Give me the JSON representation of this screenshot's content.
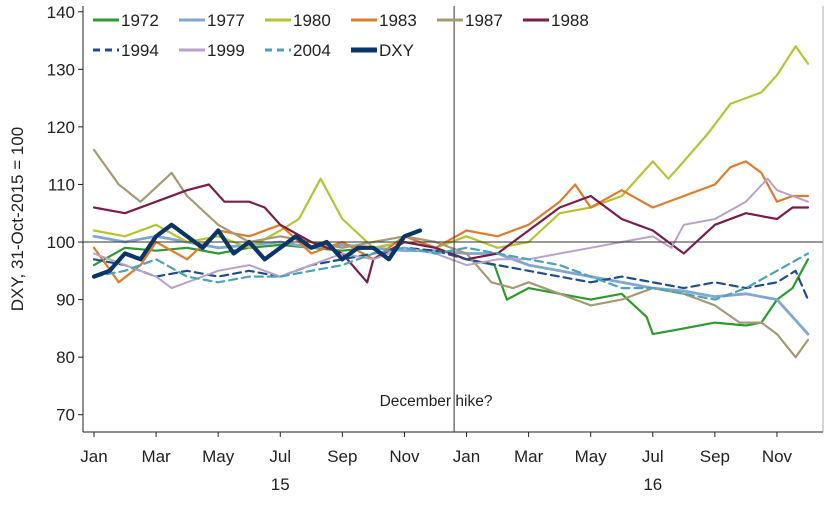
{
  "chart_data": {
    "type": "line",
    "title": "",
    "ylabel": "DXY, 31-Oct-2015 = 100",
    "xlabel": "",
    "ylim": [
      67,
      141
    ],
    "yticks": [
      70,
      80,
      90,
      100,
      110,
      120,
      130,
      140
    ],
    "xlim": [
      0,
      23
    ],
    "xticks": [
      {
        "x": 0,
        "label": "Jan"
      },
      {
        "x": 2,
        "label": "Mar"
      },
      {
        "x": 4,
        "label": "May"
      },
      {
        "x": 6,
        "label": "Jul"
      },
      {
        "x": 8,
        "label": "Sep"
      },
      {
        "x": 10,
        "label": "Nov"
      },
      {
        "x": 12,
        "label": "Jan"
      },
      {
        "x": 14,
        "label": "Mar"
      },
      {
        "x": 16,
        "label": "May"
      },
      {
        "x": 18,
        "label": "Jul"
      },
      {
        "x": 20,
        "label": "Sep"
      },
      {
        "x": 22,
        "label": "Nov"
      }
    ],
    "year_labels": [
      {
        "x": 6,
        "label": "15"
      },
      {
        "x": 18,
        "label": "16"
      }
    ],
    "reference_line": {
      "y": 100
    },
    "vline": {
      "x": 11.6
    },
    "annotation": {
      "text": "December hike?",
      "x": 9.2,
      "y": 71.5
    },
    "legend_position": "top-left",
    "series": [
      {
        "name": "1972",
        "color": "#2e9a2e",
        "dash": false,
        "width": 2.2,
        "points": [
          [
            0,
            96
          ],
          [
            1,
            99
          ],
          [
            2,
            98.5
          ],
          [
            3,
            99
          ],
          [
            4,
            98
          ],
          [
            5,
            99
          ],
          [
            6,
            99.5
          ],
          [
            7,
            99
          ],
          [
            8,
            98.5
          ],
          [
            9,
            99
          ],
          [
            10,
            100
          ],
          [
            11,
            99
          ],
          [
            12,
            97
          ],
          [
            12.9,
            96
          ],
          [
            13.3,
            90
          ],
          [
            14,
            92
          ],
          [
            15,
            91
          ],
          [
            16,
            90
          ],
          [
            17,
            91
          ],
          [
            17.8,
            87
          ],
          [
            18,
            84
          ],
          [
            19,
            85
          ],
          [
            20,
            86
          ],
          [
            21,
            85.5
          ],
          [
            21.5,
            86
          ],
          [
            22,
            90
          ],
          [
            22.5,
            92
          ],
          [
            23,
            97
          ]
        ]
      },
      {
        "name": "1977",
        "color": "#7fa7cf",
        "dash": false,
        "width": 2.8,
        "points": [
          [
            0,
            101
          ],
          [
            1,
            100
          ],
          [
            2,
            101
          ],
          [
            3,
            100
          ],
          [
            4,
            99
          ],
          [
            5,
            99.5
          ],
          [
            6,
            100
          ],
          [
            7,
            99
          ],
          [
            8,
            99.5
          ],
          [
            9,
            99
          ],
          [
            10,
            98.5
          ],
          [
            11,
            98.5
          ],
          [
            12,
            98
          ],
          [
            13,
            98
          ],
          [
            14,
            96
          ],
          [
            15,
            95
          ],
          [
            16,
            94
          ],
          [
            17,
            93
          ],
          [
            18,
            92
          ],
          [
            19,
            91.5
          ],
          [
            20,
            90.5
          ],
          [
            21,
            91
          ],
          [
            22,
            90
          ],
          [
            23,
            84
          ]
        ]
      },
      {
        "name": "1980",
        "color": "#b5c434",
        "dash": false,
        "width": 2.2,
        "points": [
          [
            0,
            102
          ],
          [
            1,
            101
          ],
          [
            2,
            103
          ],
          [
            3,
            100
          ],
          [
            4,
            101
          ],
          [
            5,
            99
          ],
          [
            6,
            102
          ],
          [
            6.6,
            104
          ],
          [
            7.3,
            111
          ],
          [
            8,
            104
          ],
          [
            9,
            99
          ],
          [
            10,
            100
          ],
          [
            11,
            99
          ],
          [
            12,
            101
          ],
          [
            13,
            99
          ],
          [
            14,
            100
          ],
          [
            15,
            105
          ],
          [
            16,
            106
          ],
          [
            17,
            108
          ],
          [
            18,
            114
          ],
          [
            18.5,
            111
          ],
          [
            19,
            114
          ],
          [
            19.8,
            119
          ],
          [
            20.5,
            124
          ],
          [
            21.5,
            126
          ],
          [
            22,
            129
          ],
          [
            22.6,
            134
          ],
          [
            23,
            131
          ]
        ]
      },
      {
        "name": "1983",
        "color": "#e07b2e",
        "dash": false,
        "width": 2.2,
        "points": [
          [
            0,
            99
          ],
          [
            0.8,
            93
          ],
          [
            1.5,
            96
          ],
          [
            2,
            100
          ],
          [
            3,
            97
          ],
          [
            4,
            102
          ],
          [
            5,
            101
          ],
          [
            6,
            103
          ],
          [
            7,
            98
          ],
          [
            8,
            100
          ],
          [
            9,
            97
          ],
          [
            10,
            101
          ],
          [
            11,
            99
          ],
          [
            12,
            102
          ],
          [
            13,
            101
          ],
          [
            14,
            103
          ],
          [
            15,
            107
          ],
          [
            15.5,
            110
          ],
          [
            16,
            106
          ],
          [
            17,
            109
          ],
          [
            18,
            106
          ],
          [
            19,
            108
          ],
          [
            20,
            110
          ],
          [
            20.5,
            113
          ],
          [
            21,
            114
          ],
          [
            21.5,
            112
          ],
          [
            22,
            107
          ],
          [
            22.5,
            108
          ],
          [
            23,
            108
          ]
        ]
      },
      {
        "name": "1987",
        "color": "#a49a74",
        "dash": false,
        "width": 2.2,
        "points": [
          [
            0,
            116
          ],
          [
            0.8,
            110
          ],
          [
            1.5,
            107
          ],
          [
            2.5,
            112
          ],
          [
            3,
            108
          ],
          [
            4,
            103
          ],
          [
            5,
            100
          ],
          [
            6,
            101
          ],
          [
            7,
            100
          ],
          [
            8,
            99
          ],
          [
            9,
            100
          ],
          [
            10,
            101
          ],
          [
            11,
            100
          ],
          [
            12,
            98
          ],
          [
            12.8,
            93
          ],
          [
            13.5,
            92
          ],
          [
            14,
            93
          ],
          [
            15,
            91
          ],
          [
            16,
            89
          ],
          [
            17,
            90
          ],
          [
            18,
            92
          ],
          [
            19,
            91
          ],
          [
            20,
            89
          ],
          [
            20.8,
            86
          ],
          [
            21.5,
            86
          ],
          [
            22,
            84
          ],
          [
            22.6,
            80
          ],
          [
            23,
            83
          ]
        ]
      },
      {
        "name": "1988",
        "color": "#7b1c4b",
        "dash": false,
        "width": 2.2,
        "points": [
          [
            0,
            106
          ],
          [
            1,
            105
          ],
          [
            2,
            107
          ],
          [
            3,
            109
          ],
          [
            3.7,
            110
          ],
          [
            4.2,
            107
          ],
          [
            5,
            107
          ],
          [
            5.5,
            106
          ],
          [
            6,
            103
          ],
          [
            7,
            100
          ],
          [
            8,
            98
          ],
          [
            8.8,
            93
          ],
          [
            9,
            97
          ],
          [
            10,
            100
          ],
          [
            11,
            99
          ],
          [
            12,
            97
          ],
          [
            13,
            98
          ],
          [
            14,
            102
          ],
          [
            15,
            106
          ],
          [
            16,
            108
          ],
          [
            17,
            104
          ],
          [
            18,
            102
          ],
          [
            19,
            98
          ],
          [
            20,
            103
          ],
          [
            21,
            105
          ],
          [
            22,
            104
          ],
          [
            22.5,
            106
          ],
          [
            23,
            106
          ]
        ]
      },
      {
        "name": "1994",
        "color": "#1f4e8c",
        "dash": true,
        "width": 2.2,
        "points": [
          [
            0,
            97
          ],
          [
            1,
            96
          ],
          [
            2,
            94
          ],
          [
            3,
            95
          ],
          [
            4,
            94
          ],
          [
            5,
            95
          ],
          [
            6,
            94
          ],
          [
            7,
            96
          ],
          [
            8,
            97
          ],
          [
            9,
            98
          ],
          [
            10,
            99
          ],
          [
            11,
            98.5
          ],
          [
            12,
            97
          ],
          [
            13,
            96
          ],
          [
            14,
            95
          ],
          [
            15,
            94
          ],
          [
            16,
            93
          ],
          [
            17,
            94
          ],
          [
            18,
            93
          ],
          [
            19,
            92
          ],
          [
            20,
            93
          ],
          [
            21,
            92
          ],
          [
            22,
            93
          ],
          [
            22.6,
            95
          ],
          [
            23,
            90
          ]
        ]
      },
      {
        "name": "1999",
        "color": "#b7a3c9",
        "dash": false,
        "width": 2.0,
        "points": [
          [
            0,
            98
          ],
          [
            1,
            96
          ],
          [
            2,
            94
          ],
          [
            2.5,
            92
          ],
          [
            3,
            93
          ],
          [
            4,
            95
          ],
          [
            5,
            96
          ],
          [
            6,
            94
          ],
          [
            7,
            96
          ],
          [
            8,
            98
          ],
          [
            9,
            97
          ],
          [
            10,
            99
          ],
          [
            11,
            98
          ],
          [
            12,
            96
          ],
          [
            13,
            97
          ],
          [
            14,
            97
          ],
          [
            15,
            98
          ],
          [
            16,
            99
          ],
          [
            17,
            100
          ],
          [
            18,
            101
          ],
          [
            18.6,
            99
          ],
          [
            19,
            103
          ],
          [
            20,
            104
          ],
          [
            21,
            107
          ],
          [
            21.7,
            111
          ],
          [
            22,
            109
          ],
          [
            23,
            107
          ]
        ]
      },
      {
        "name": "2004",
        "color": "#4aa3b8",
        "dash": true,
        "width": 2.2,
        "points": [
          [
            0,
            94
          ],
          [
            1,
            95
          ],
          [
            2,
            97
          ],
          [
            3,
            94
          ],
          [
            4,
            93
          ],
          [
            5,
            94
          ],
          [
            6,
            94
          ],
          [
            7,
            95
          ],
          [
            8,
            96
          ],
          [
            9,
            98
          ],
          [
            10,
            99
          ],
          [
            11,
            98
          ],
          [
            12,
            99
          ],
          [
            13,
            98
          ],
          [
            14,
            97
          ],
          [
            15,
            96
          ],
          [
            16,
            94
          ],
          [
            17,
            92
          ],
          [
            18,
            92
          ],
          [
            19,
            91
          ],
          [
            20,
            90
          ],
          [
            21,
            92
          ],
          [
            22,
            95
          ],
          [
            23,
            98
          ]
        ]
      },
      {
        "name": "DXY",
        "color": "#0b3566",
        "dash": false,
        "width": 4.2,
        "points": [
          [
            0,
            94
          ],
          [
            0.5,
            95
          ],
          [
            1,
            98
          ],
          [
            1.5,
            97
          ],
          [
            2,
            101
          ],
          [
            2.5,
            103
          ],
          [
            3,
            101
          ],
          [
            3.5,
            99
          ],
          [
            4,
            102
          ],
          [
            4.5,
            98
          ],
          [
            5,
            100
          ],
          [
            5.5,
            97
          ],
          [
            6,
            99
          ],
          [
            6.5,
            101
          ],
          [
            7,
            99
          ],
          [
            7.5,
            100
          ],
          [
            8,
            97
          ],
          [
            8.5,
            99
          ],
          [
            9,
            99
          ],
          [
            9.5,
            97
          ],
          [
            10,
            101
          ],
          [
            10.5,
            102
          ]
        ]
      }
    ]
  }
}
